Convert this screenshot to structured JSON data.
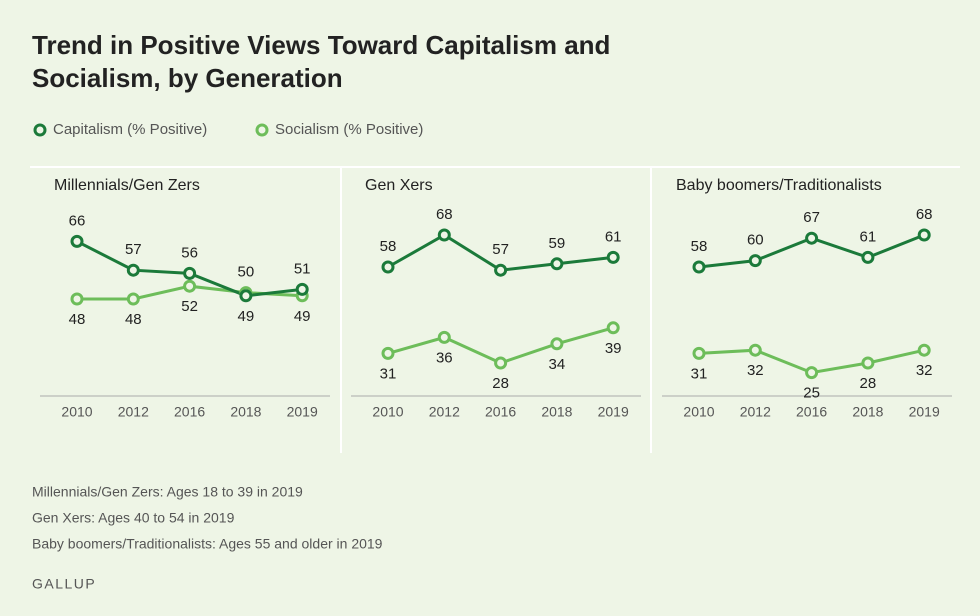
{
  "title": "Trend in Positive Views Toward Capitalism and Socialism, by Generation",
  "chart_data": [
    {
      "type": "line",
      "title": "Millennials/Gen Zers",
      "categories": [
        "2010",
        "2012",
        "2016",
        "2018",
        "2019"
      ],
      "series": [
        {
          "name": "Capitalism (% Positive)",
          "color": "#1b7a3a",
          "values": [
            66,
            57,
            56,
            49,
            51
          ]
        },
        {
          "name": "Socialism (% Positive)",
          "color": "#6dbd5a",
          "values": [
            48,
            48,
            52,
            50,
            49
          ]
        }
      ],
      "ylim": [
        18,
        78
      ]
    },
    {
      "type": "line",
      "title": "Gen Xers",
      "categories": [
        "2010",
        "2012",
        "2016",
        "2018",
        "2019"
      ],
      "series": [
        {
          "name": "Capitalism (% Positive)",
          "color": "#1b7a3a",
          "values": [
            58,
            68,
            57,
            59,
            61
          ]
        },
        {
          "name": "Socialism (% Positive)",
          "color": "#6dbd5a",
          "values": [
            31,
            36,
            28,
            34,
            39
          ]
        }
      ],
      "ylim": [
        18,
        78
      ]
    },
    {
      "type": "line",
      "title": "Baby boomers/Traditionalists",
      "categories": [
        "2010",
        "2012",
        "2016",
        "2018",
        "2019"
      ],
      "series": [
        {
          "name": "Capitalism (% Positive)",
          "color": "#1b7a3a",
          "values": [
            58,
            60,
            67,
            61,
            68
          ]
        },
        {
          "name": "Socialism (% Positive)",
          "color": "#6dbd5a",
          "values": [
            31,
            32,
            25,
            28,
            32
          ]
        }
      ],
      "ylim": [
        18,
        78
      ]
    }
  ],
  "notes": [
    "Millennials/Gen Zers: Ages 18 to 39 in 2019",
    "Gen Xers: Ages 40 to 54 in 2019",
    "Baby boomers/Traditionalists: Ages 55 and older in 2019"
  ],
  "source": "GALLUP"
}
